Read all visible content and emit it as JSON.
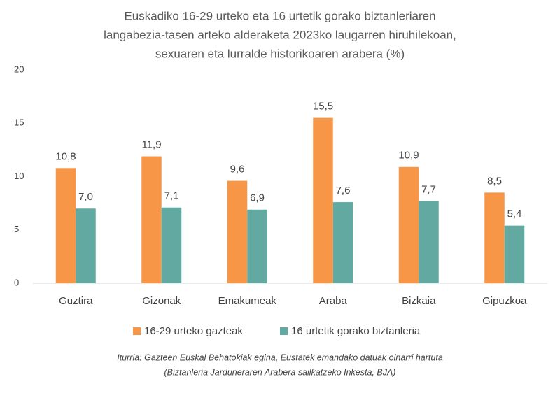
{
  "chart_data": {
    "type": "bar",
    "title": [
      "Euskadiko 16-29 urteko eta 16 urtetik gorako biztanleriaren",
      "langabezia-tasen arteko alderaketa 2023ko laugarren hiruhilekoan,",
      "sexuaren eta lurralde historikoaren arabera  (%)"
    ],
    "categories": [
      "Guztira",
      "Gizonak",
      "Emakumeak",
      "Araba",
      "Bizkaia",
      "Gipuzkoa"
    ],
    "series": [
      {
        "name": "16-29 urteko gazteak",
        "color": "#f79646",
        "values": [
          10.8,
          11.9,
          9.6,
          15.5,
          10.9,
          8.5
        ],
        "value_labels": [
          "10,8",
          "11,9",
          "9,6",
          "15,5",
          "10,9",
          "8,5"
        ]
      },
      {
        "name": "16 urtetik gorako biztanleria",
        "color": "#62a9a2",
        "values": [
          7.0,
          7.1,
          6.9,
          7.6,
          7.7,
          5.4
        ],
        "value_labels": [
          "7,0",
          "7,1",
          "6,9",
          "7,6",
          "7,7",
          "5,4"
        ]
      }
    ],
    "ylim": [
      0,
      20
    ],
    "yticks": [
      0,
      5,
      10,
      15,
      20
    ],
    "grid": false,
    "legend": "bottom",
    "source": [
      "Iturria: Gazteen Euskal Behatokiak egina, Eustatek emandako datuak oinarri hartuta",
      "(Biztanleria Jarduneraren Arabera sailkatzeko Inkesta, BJA)"
    ]
  }
}
